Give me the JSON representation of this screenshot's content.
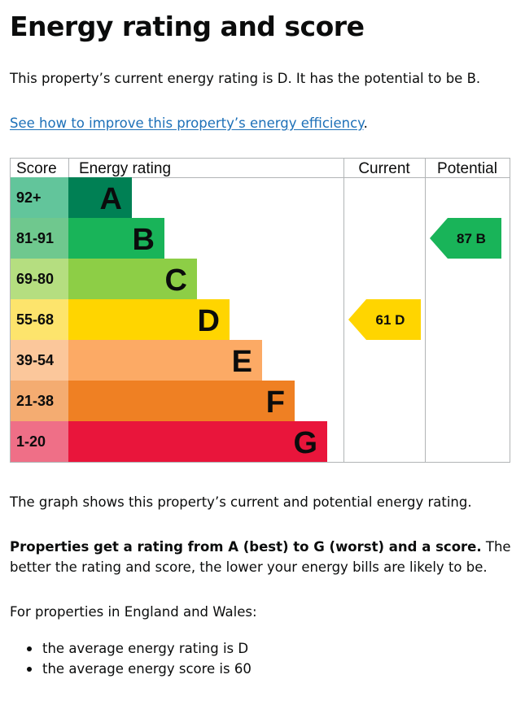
{
  "heading": "Energy rating and score",
  "intro": "This property’s current energy rating is D. It has the potential to be B.",
  "improve_link": "See how to improve this property’s energy efficiency",
  "improve_link_suffix": ".",
  "graph_caption": "The graph shows this property’s current and potential energy rating.",
  "rating_info": {
    "bold": "Properties get a rating from A (best) to G (worst) and a score.",
    "rest": " The better the rating and score, the lower your energy bills are likely to be."
  },
  "average_intro": "For properties in England and Wales:",
  "average_items": [
    "the average energy rating is D",
    "the average energy score is 60"
  ],
  "chart_data": {
    "type": "bar",
    "columns": [
      "Score",
      "Energy rating",
      "Current",
      "Potential"
    ],
    "bands": [
      {
        "letter": "A",
        "range": "92+",
        "min_score": 92,
        "color": "#008054",
        "score_color": "#62c59b"
      },
      {
        "letter": "B",
        "range": "81-91",
        "min_score": 81,
        "color": "#19b459",
        "score_color": "#6fc88e"
      },
      {
        "letter": "C",
        "range": "69-80",
        "min_score": 69,
        "color": "#8dce46",
        "score_color": "#b5de80"
      },
      {
        "letter": "D",
        "range": "55-68",
        "min_score": 55,
        "color": "#ffd500",
        "score_color": "#fde46c"
      },
      {
        "letter": "E",
        "range": "39-54",
        "min_score": 39,
        "color": "#fcaa65",
        "score_color": "#fbc79b"
      },
      {
        "letter": "F",
        "range": "21-38",
        "min_score": 21,
        "color": "#ef8023",
        "score_color": "#f4ac71"
      },
      {
        "letter": "G",
        "range": "1-20",
        "min_score": 1,
        "color": "#e9153b",
        "score_color": "#ef6f87"
      }
    ],
    "current": {
      "score": 61,
      "letter": "D",
      "label": "61  D"
    },
    "potential": {
      "score": 87,
      "letter": "B",
      "label": "87  B"
    }
  }
}
